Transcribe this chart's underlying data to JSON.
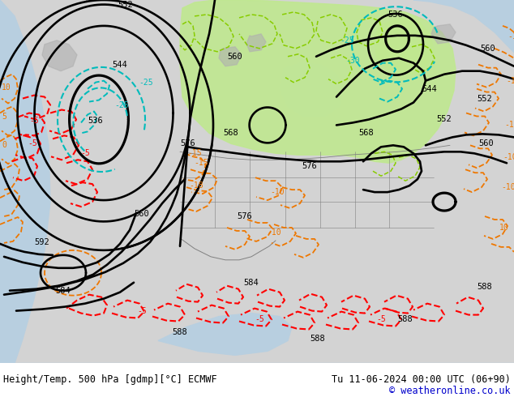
{
  "title_left": "Height/Temp. 500 hPa [gdmp][°C] ECMWF",
  "title_right": "Tu 11-06-2024 00:00 UTC (06+90)",
  "copyright": "© weatheronline.co.uk",
  "bg_land": "#d3d3d3",
  "bg_sea": "#b8cfe0",
  "bg_green": "#c0e890",
  "black": "#000000",
  "cyan": "#00bbbb",
  "orange": "#ee7700",
  "red": "#ff0000",
  "lime": "#88cc00",
  "gray_border": "#808080",
  "fig_w": 6.34,
  "fig_h": 4.9,
  "dpi": 100,
  "txt_color": "#000000",
  "copy_color": "#0000cc"
}
